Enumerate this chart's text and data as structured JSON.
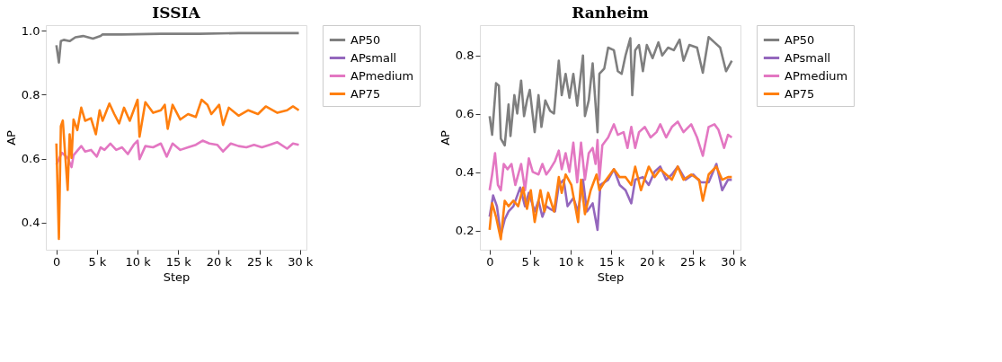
{
  "chart_data": [
    {
      "type": "line",
      "title": "ISSIA",
      "xlabel": "Step",
      "ylabel": "AP",
      "legend": "right",
      "grid": false,
      "line_style": "solid",
      "xlim": [
        -1300,
        30800
      ],
      "ylim": [
        0.315,
        1.017
      ],
      "xticks": [
        0,
        {
          "value": 5000,
          "label": "5 k"
        },
        {
          "value": 10000,
          "label": "10 k"
        },
        {
          "value": 15000,
          "label": "15 k"
        },
        {
          "value": 20000,
          "label": "20 k"
        },
        {
          "value": 25000,
          "label": "25 k"
        },
        {
          "value": 30000,
          "label": "30 k"
        }
      ],
      "yticks": [
        0.4,
        0.6,
        0.8,
        {
          "value": 1,
          "label": "1.0"
        }
      ],
      "series": [
        {
          "name": "AP50",
          "color": "#7f7f7f",
          "x": [
            0,
            310,
            550,
            910,
            1630,
            2340,
            3300,
            4500,
            5450,
            5690,
            8090,
            12870,
            17660,
            22440,
            29860
          ],
          "values": [
            0.954,
            0.9,
            0.967,
            0.971,
            0.967,
            0.979,
            0.983,
            0.975,
            0.983,
            0.988,
            0.988,
            0.99,
            0.99,
            0.992,
            0.992
          ]
        },
        {
          "name": "APsmall",
          "color": "#9467bd"
        },
        {
          "name": "APmedium",
          "color": "#e377c2",
          "x": [
            0,
            670,
            1390,
            1870,
            2110,
            3060,
            3540,
            4260,
            4980,
            5450,
            5930,
            6650,
            7370,
            8090,
            8800,
            9520,
            10000,
            10240,
            10960,
            11910,
            12870,
            13590,
            14310,
            15260,
            16220,
            17180,
            18010,
            18850,
            19810,
            20530,
            21480,
            22440,
            23400,
            24350,
            25310,
            26270,
            27220,
            28420,
            29140,
            29860
          ],
          "values": [
            0.581,
            0.618,
            0.602,
            0.573,
            0.61,
            0.639,
            0.622,
            0.627,
            0.606,
            0.635,
            0.627,
            0.647,
            0.627,
            0.635,
            0.614,
            0.643,
            0.656,
            0.598,
            0.639,
            0.635,
            0.647,
            0.606,
            0.647,
            0.627,
            0.635,
            0.643,
            0.656,
            0.647,
            0.643,
            0.622,
            0.647,
            0.639,
            0.635,
            0.643,
            0.635,
            0.643,
            0.651,
            0.631,
            0.647,
            0.643
          ]
        },
        {
          "name": "AP75",
          "color": "#ff7f0e",
          "x": [
            0,
            310,
            550,
            790,
            1390,
            1630,
            1870,
            2110,
            2580,
            3060,
            3540,
            4260,
            4860,
            5330,
            5690,
            6530,
            7130,
            7730,
            8330,
            9040,
            10000,
            10240,
            10960,
            11910,
            12870,
            13350,
            13710,
            14310,
            15260,
            16220,
            17180,
            17890,
            18610,
            19090,
            20050,
            20530,
            21240,
            22440,
            23640,
            24830,
            25790,
            27220,
            28420,
            29140,
            29860
          ],
          "values": [
            0.647,
            0.349,
            0.701,
            0.719,
            0.502,
            0.676,
            0.602,
            0.722,
            0.689,
            0.759,
            0.718,
            0.726,
            0.676,
            0.751,
            0.718,
            0.772,
            0.739,
            0.71,
            0.759,
            0.718,
            0.784,
            0.668,
            0.776,
            0.743,
            0.751,
            0.768,
            0.693,
            0.768,
            0.722,
            0.739,
            0.73,
            0.784,
            0.768,
            0.739,
            0.768,
            0.705,
            0.759,
            0.734,
            0.751,
            0.739,
            0.763,
            0.743,
            0.751,
            0.763,
            0.751
          ]
        }
      ]
    },
    {
      "type": "line",
      "title": "Ranheim",
      "xlabel": "Step",
      "ylabel": "AP",
      "legend": "right",
      "grid": false,
      "line_style": "solid",
      "xlim": [
        -1200,
        30900
      ],
      "ylim": [
        0.134,
        0.904
      ],
      "xticks": [
        0,
        {
          "value": 5000,
          "label": "5 k"
        },
        {
          "value": 10000,
          "label": "10 k"
        },
        {
          "value": 15000,
          "label": "15 k"
        },
        {
          "value": 20000,
          "label": "20 k"
        },
        {
          "value": 25000,
          "label": "25 k"
        },
        {
          "value": 30000,
          "label": "30 k"
        }
      ],
      "yticks": [
        0.2,
        0.4,
        0.6,
        0.8
      ],
      "series": [
        {
          "name": "AP50",
          "color": "#7f7f7f",
          "x": [
            0,
            310,
            790,
            1140,
            1380,
            1860,
            2330,
            2570,
            3050,
            3400,
            3880,
            4240,
            4600,
            4950,
            5550,
            6020,
            6380,
            6860,
            7450,
            7930,
            8520,
            8880,
            9360,
            9830,
            10310,
            10790,
            11500,
            11740,
            12210,
            12690,
            13290,
            13520,
            14120,
            14600,
            15310,
            15790,
            16260,
            16740,
            17330,
            17570,
            17930,
            18400,
            18880,
            19360,
            20070,
            20790,
            21260,
            21980,
            22690,
            23400,
            23880,
            24600,
            25550,
            26260,
            26980,
            27690,
            28400,
            29120,
            29830
          ],
          "values": [
            0.592,
            0.528,
            0.705,
            0.696,
            0.515,
            0.492,
            0.632,
            0.524,
            0.664,
            0.601,
            0.714,
            0.592,
            0.646,
            0.682,
            0.537,
            0.664,
            0.555,
            0.646,
            0.61,
            0.601,
            0.782,
            0.664,
            0.737,
            0.655,
            0.737,
            0.628,
            0.8,
            0.592,
            0.646,
            0.773,
            0.537,
            0.737,
            0.755,
            0.827,
            0.818,
            0.746,
            0.737,
            0.8,
            0.859,
            0.664,
            0.818,
            0.836,
            0.746,
            0.836,
            0.791,
            0.845,
            0.8,
            0.827,
            0.818,
            0.854,
            0.782,
            0.836,
            0.827,
            0.741,
            0.863,
            0.845,
            0.827,
            0.746,
            0.782
          ]
        },
        {
          "name": "APsmall",
          "color": "#9467bd",
          "x": [
            0,
            430,
            900,
            1380,
            1860,
            2330,
            2930,
            3760,
            4360,
            4830,
            5550,
            6020,
            6500,
            6980,
            7450,
            8050,
            8520,
            9120,
            9600,
            10310,
            10900,
            11500,
            11980,
            12690,
            13290,
            13640,
            14600,
            15310,
            16020,
            16740,
            17450,
            17930,
            18880,
            19600,
            20310,
            21020,
            21740,
            22450,
            23170,
            24120,
            25070,
            26020,
            26980,
            27930,
            28640,
            29360,
            29830
          ],
          "values": [
            0.247,
            0.32,
            0.283,
            0.184,
            0.238,
            0.265,
            0.283,
            0.347,
            0.283,
            0.329,
            0.265,
            0.302,
            0.247,
            0.283,
            0.274,
            0.265,
            0.356,
            0.374,
            0.283,
            0.311,
            0.265,
            0.374,
            0.265,
            0.293,
            0.202,
            0.356,
            0.374,
            0.41,
            0.356,
            0.338,
            0.293,
            0.374,
            0.383,
            0.356,
            0.401,
            0.419,
            0.374,
            0.392,
            0.419,
            0.374,
            0.392,
            0.365,
            0.365,
            0.428,
            0.338,
            0.374,
            0.374
          ]
        },
        {
          "name": "APmedium",
          "color": "#e377c2",
          "x": [
            0,
            310,
            670,
            1020,
            1380,
            1740,
            2210,
            2690,
            3170,
            3880,
            4360,
            4830,
            5310,
            6020,
            6500,
            6980,
            7450,
            8050,
            8520,
            8880,
            9360,
            9830,
            10310,
            10790,
            11260,
            11740,
            12210,
            12690,
            13050,
            13290,
            13520,
            13880,
            14600,
            15310,
            15790,
            16500,
            16980,
            17450,
            17930,
            18400,
            19120,
            19830,
            20550,
            21020,
            21740,
            22450,
            23170,
            23880,
            24830,
            25550,
            26260,
            26980,
            27690,
            28170,
            28880,
            29360,
            29830
          ],
          "values": [
            0.338,
            0.392,
            0.465,
            0.356,
            0.338,
            0.428,
            0.41,
            0.428,
            0.356,
            0.428,
            0.338,
            0.447,
            0.401,
            0.392,
            0.428,
            0.392,
            0.41,
            0.438,
            0.474,
            0.41,
            0.465,
            0.401,
            0.501,
            0.365,
            0.501,
            0.374,
            0.465,
            0.483,
            0.428,
            0.51,
            0.374,
            0.492,
            0.519,
            0.564,
            0.528,
            0.537,
            0.483,
            0.555,
            0.483,
            0.537,
            0.555,
            0.519,
            0.537,
            0.564,
            0.519,
            0.555,
            0.573,
            0.537,
            0.564,
            0.519,
            0.456,
            0.555,
            0.564,
            0.546,
            0.483,
            0.528,
            0.519
          ]
        },
        {
          "name": "AP75",
          "color": "#ff7f0e",
          "x": [
            0,
            310,
            790,
            1380,
            1860,
            2330,
            2930,
            3520,
            4120,
            4600,
            5070,
            5550,
            6260,
            6740,
            7210,
            7930,
            8520,
            8880,
            9360,
            10070,
            10900,
            11260,
            11740,
            12450,
            13170,
            13520,
            14120,
            14830,
            15310,
            16020,
            16740,
            17450,
            17930,
            18640,
            19600,
            20310,
            21020,
            21740,
            22450,
            23170,
            23880,
            24830,
            25790,
            26260,
            26980,
            27930,
            28640,
            29360,
            29830
          ],
          "values": [
            0.202,
            0.293,
            0.247,
            0.17,
            0.302,
            0.283,
            0.302,
            0.283,
            0.347,
            0.274,
            0.338,
            0.229,
            0.338,
            0.265,
            0.329,
            0.265,
            0.383,
            0.329,
            0.392,
            0.356,
            0.229,
            0.374,
            0.256,
            0.338,
            0.392,
            0.338,
            0.365,
            0.392,
            0.41,
            0.383,
            0.383,
            0.356,
            0.419,
            0.338,
            0.419,
            0.383,
            0.41,
            0.392,
            0.374,
            0.419,
            0.374,
            0.392,
            0.374,
            0.302,
            0.392,
            0.419,
            0.374,
            0.383,
            0.383
          ]
        }
      ]
    }
  ]
}
